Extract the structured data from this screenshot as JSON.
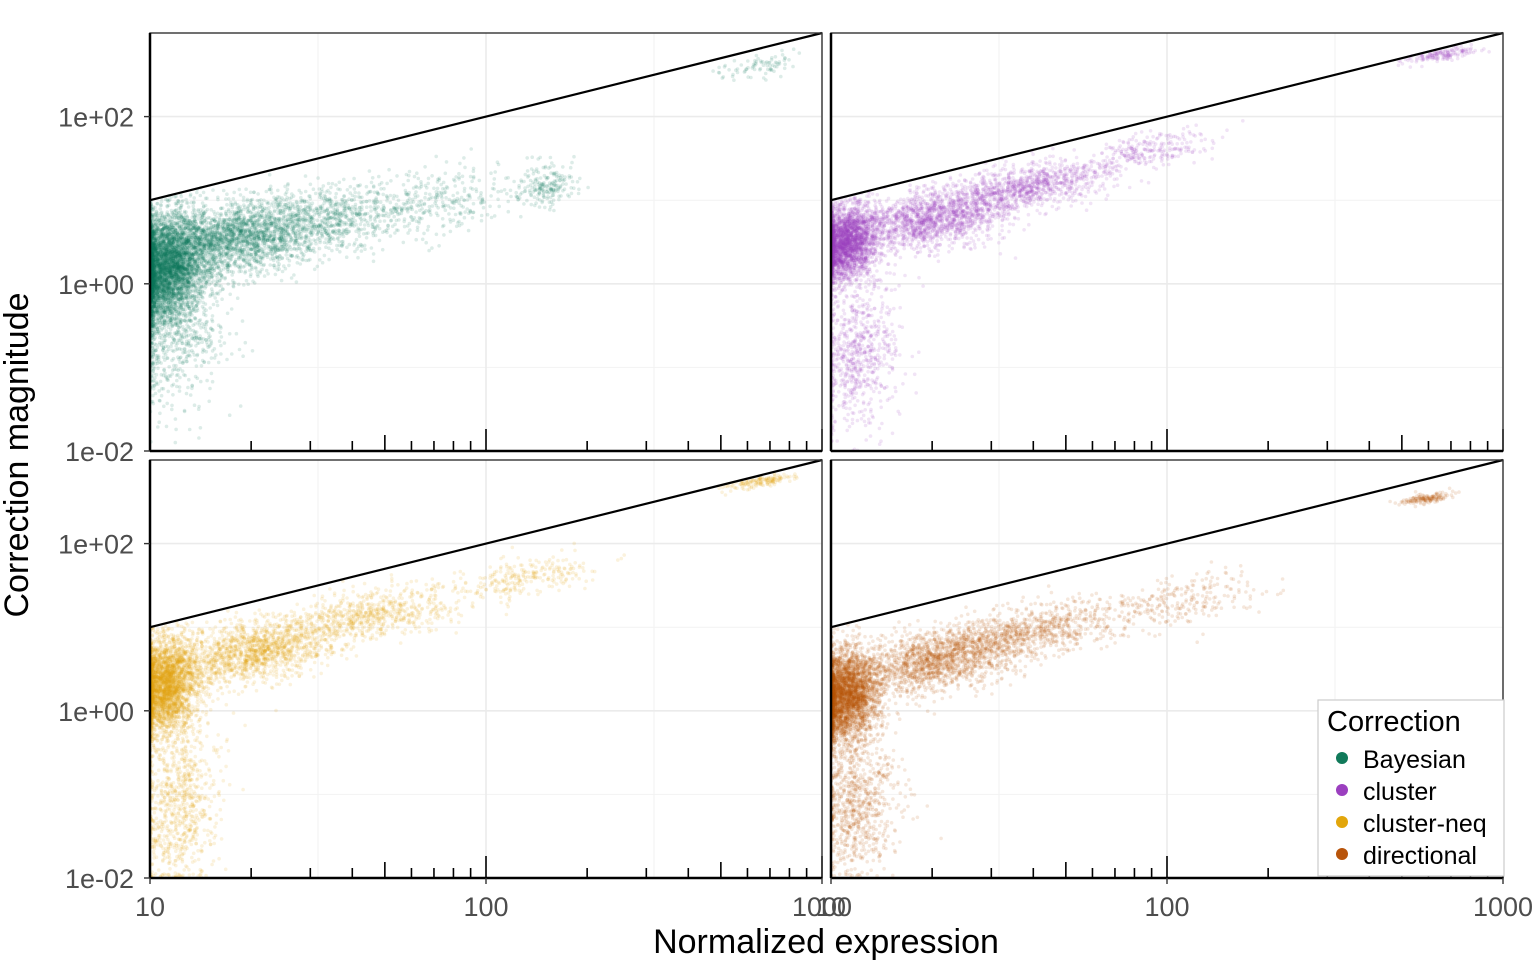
{
  "chart_data": {
    "type": "scatter",
    "facets": 4,
    "xlabel": "Normalized expression",
    "ylabel": "Correction magnitude",
    "xscale": "log10",
    "yscale": "log10",
    "xlim": [
      10,
      1000
    ],
    "ylim": [
      0.01,
      1000
    ],
    "x_ticks": [
      10,
      100,
      1000
    ],
    "x_tick_labels": [
      "10",
      "100",
      "1000"
    ],
    "y_ticks": [
      0.01,
      1,
      100
    ],
    "y_tick_labels": [
      "1e-02",
      "1e+00",
      "1e+02"
    ],
    "grid": true,
    "reference_line": "y = x",
    "legend": {
      "title": "Correction",
      "position": "bottom-right",
      "entries": [
        "Bayesian",
        "cluster",
        "cluster-neq",
        "directional"
      ]
    },
    "series": [
      {
        "name": "Bayesian",
        "color": "#117a5a",
        "panel": 0,
        "points": [
          {
            "x": 11,
            "y": 1.5,
            "n": 4500,
            "sx": 0.06,
            "sy": 0.32
          },
          {
            "x": 18,
            "y": 3.5,
            "n": 2200,
            "sx": 0.12,
            "sy": 0.22
          },
          {
            "x": 35,
            "y": 6.0,
            "n": 800,
            "sx": 0.13,
            "sy": 0.2
          },
          {
            "x": 75,
            "y": 10.0,
            "n": 250,
            "sx": 0.1,
            "sy": 0.2
          },
          {
            "x": 150,
            "y": 15.0,
            "n": 200,
            "sx": 0.05,
            "sy": 0.12
          },
          {
            "x": 650,
            "y": 400,
            "n": 80,
            "sx": 0.06,
            "sy": 0.06
          },
          {
            "x": 12,
            "y": 0.2,
            "n": 500,
            "sx": 0.08,
            "sy": 0.4
          }
        ]
      },
      {
        "name": "cluster",
        "color": "#9b3fbf",
        "panel": 1,
        "points": [
          {
            "x": 11,
            "y": 3.0,
            "n": 2600,
            "sx": 0.05,
            "sy": 0.22
          },
          {
            "x": 20,
            "y": 6.0,
            "n": 1600,
            "sx": 0.12,
            "sy": 0.17
          },
          {
            "x": 40,
            "y": 15.0,
            "n": 900,
            "sx": 0.12,
            "sy": 0.13
          },
          {
            "x": 90,
            "y": 40.0,
            "n": 250,
            "sx": 0.1,
            "sy": 0.1
          },
          {
            "x": 650,
            "y": 550,
            "n": 150,
            "sx": 0.05,
            "sy": 0.03
          },
          {
            "x": 12,
            "y": 0.15,
            "n": 700,
            "sx": 0.06,
            "sy": 0.45
          }
        ]
      },
      {
        "name": "cluster-neq",
        "color": "#e2a60b",
        "panel": 2,
        "points": [
          {
            "x": 11,
            "y": 2.0,
            "n": 3000,
            "sx": 0.05,
            "sy": 0.28
          },
          {
            "x": 20,
            "y": 5.0,
            "n": 1500,
            "sx": 0.12,
            "sy": 0.18
          },
          {
            "x": 45,
            "y": 14.0,
            "n": 700,
            "sx": 0.13,
            "sy": 0.15
          },
          {
            "x": 130,
            "y": 40.0,
            "n": 250,
            "sx": 0.1,
            "sy": 0.12
          },
          {
            "x": 650,
            "y": 550,
            "n": 150,
            "sx": 0.05,
            "sy": 0.03
          },
          {
            "x": 12,
            "y": 0.08,
            "n": 800,
            "sx": 0.06,
            "sy": 0.5
          }
        ]
      },
      {
        "name": "directional",
        "color": "#b8540a",
        "panel": 3,
        "points": [
          {
            "x": 11,
            "y": 1.5,
            "n": 3200,
            "sx": 0.05,
            "sy": 0.27
          },
          {
            "x": 20,
            "y": 4.0,
            "n": 1600,
            "sx": 0.12,
            "sy": 0.18
          },
          {
            "x": 40,
            "y": 9.0,
            "n": 800,
            "sx": 0.13,
            "sy": 0.15
          },
          {
            "x": 110,
            "y": 20.0,
            "n": 250,
            "sx": 0.12,
            "sy": 0.15
          },
          {
            "x": 600,
            "y": 350,
            "n": 150,
            "sx": 0.04,
            "sy": 0.03
          },
          {
            "x": 12,
            "y": 0.08,
            "n": 800,
            "sx": 0.06,
            "sy": 0.45
          }
        ]
      }
    ]
  }
}
